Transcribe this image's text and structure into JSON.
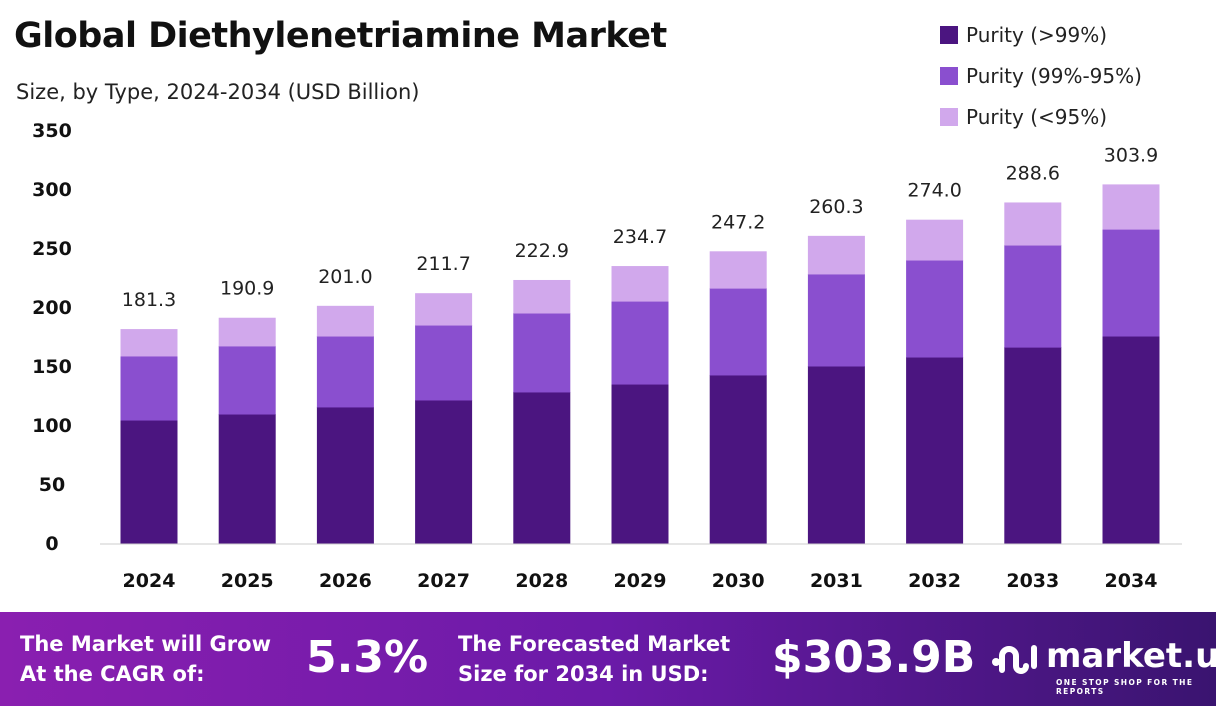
{
  "chart_data": {
    "type": "bar",
    "stacked": true,
    "title": "Global Diethylenetriamine Market",
    "subtitle": "Size, by Type, 2024-2034 (USD Billion)",
    "xlabel": "",
    "ylabel": "",
    "ylim": [
      0,
      350
    ],
    "yticks": [
      0,
      50,
      100,
      150,
      200,
      250,
      300,
      350
    ],
    "categories": [
      "2024",
      "2025",
      "2026",
      "2027",
      "2028",
      "2029",
      "2030",
      "2031",
      "2032",
      "2033",
      "2034"
    ],
    "series": [
      {
        "name": "Purity (>99%)",
        "color": "#4b1580",
        "values": [
          104.2,
          109.3,
          115.3,
          121.2,
          128.0,
          134.7,
          142.4,
          150.0,
          157.6,
          166.0,
          175.4
        ]
      },
      {
        "name": "Purity (99%-95%)",
        "color": "#8a4fcf",
        "values": [
          54.3,
          57.7,
          60.1,
          63.5,
          66.9,
          70.3,
          73.6,
          78.0,
          82.2,
          86.5,
          90.6
        ]
      },
      {
        "name": "Purity (<95%)",
        "color": "#d1a8ec",
        "values": [
          22.8,
          23.9,
          25.6,
          27.0,
          28.0,
          29.7,
          31.2,
          32.3,
          34.2,
          36.1,
          37.9
        ]
      }
    ],
    "totals": [
      "181.3",
      "190.9",
      "201.0",
      "211.7",
      "222.9",
      "234.7",
      "247.2",
      "260.3",
      "274.0",
      "288.6",
      "303.9"
    ],
    "legend_position": "top-right",
    "grid": false
  },
  "footer": {
    "cagr_label_1": "The Market will Grow",
    "cagr_label_2": "At the CAGR of:",
    "cagr_value": "5.3%",
    "forecast_label_1": "The Forecasted Market",
    "forecast_label_2": "Size for 2034 in USD:",
    "forecast_value": "$303.9B",
    "logo_text": "market.us",
    "logo_tagline": "ONE STOP SHOP FOR THE REPORTS"
  }
}
